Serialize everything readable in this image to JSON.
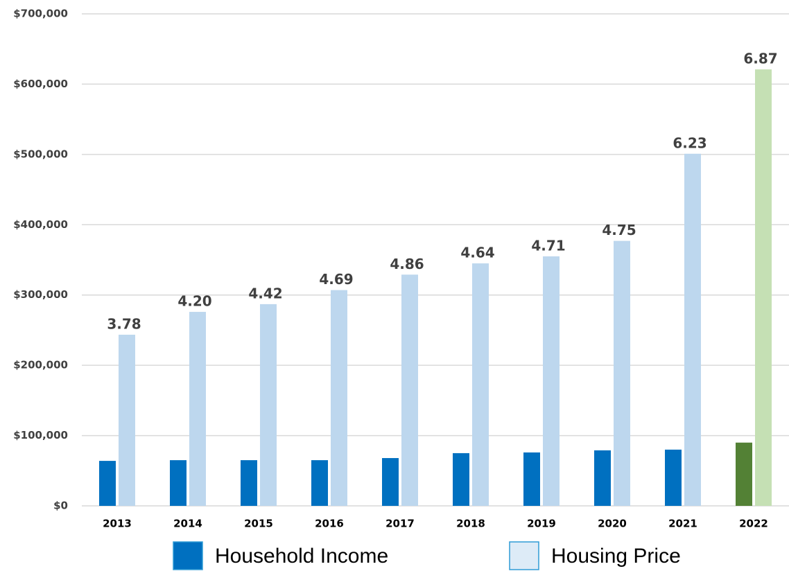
{
  "chart_data": {
    "type": "bar",
    "categories": [
      "2013",
      "2014",
      "2015",
      "2016",
      "2017",
      "2018",
      "2019",
      "2020",
      "2021",
      "2022"
    ],
    "series": [
      {
        "name": "Household Income",
        "color": "#0070c0",
        "colors": [
          "#0070c0",
          "#0070c0",
          "#0070c0",
          "#0070c0",
          "#0070c0",
          "#0070c0",
          "#0070c0",
          "#0070c0",
          "#0070c0",
          "#538135"
        ],
        "values": [
          64000,
          65000,
          65000,
          65000,
          68000,
          75000,
          76000,
          79000,
          80000,
          90000
        ]
      },
      {
        "name": "Housing Price",
        "color": "#ddebf7",
        "colors": [
          "#bdd7ee",
          "#bdd7ee",
          "#bdd7ee",
          "#bdd7ee",
          "#bdd7ee",
          "#bdd7ee",
          "#bdd7ee",
          "#bdd7ee",
          "#bdd7ee",
          "#c5e0b4"
        ],
        "values": [
          243500,
          276000,
          287000,
          307000,
          329000,
          345000,
          355000,
          377000,
          501000,
          621000
        ]
      }
    ],
    "annotations": [
      "3.78",
      "4.20",
      "4.42",
      "4.69",
      "4.86",
      "4.64",
      "4.71",
      "4.75",
      "6.23",
      "6.87"
    ],
    "ylim": [
      0,
      700000
    ],
    "yticks": [
      {
        "value": 0,
        "label": "$0"
      },
      {
        "value": 100000,
        "label": "$100,000"
      },
      {
        "value": 200000,
        "label": "$200,000"
      },
      {
        "value": 300000,
        "label": "$300,000"
      },
      {
        "value": 400000,
        "label": "$400,000"
      },
      {
        "value": 500000,
        "label": "$500,000"
      },
      {
        "value": 600000,
        "label": "$600,000"
      },
      {
        "value": 700000,
        "label": "$700,000"
      }
    ],
    "grid": true
  }
}
